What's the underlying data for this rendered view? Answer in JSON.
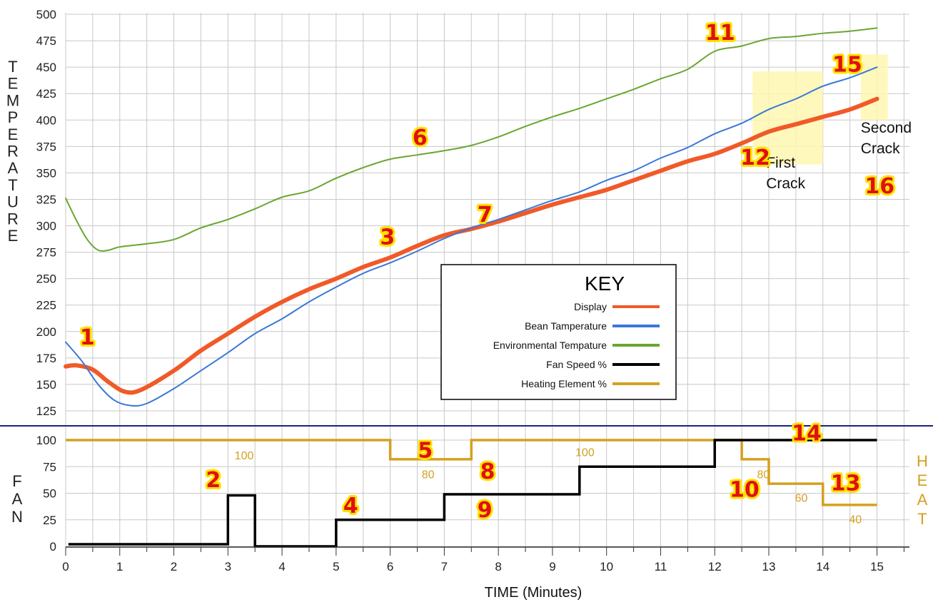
{
  "chart_data": {
    "type": "line",
    "xlabel": "TIME (Minutes)",
    "upper_ylabel": "TEMPERATURE",
    "lower_left_label": "FAN",
    "lower_right_label": "HEAT",
    "x_ticks": [
      0,
      1,
      2,
      3,
      4,
      5,
      6,
      7,
      8,
      9,
      10,
      11,
      12,
      13,
      14,
      15
    ],
    "xlim": [
      0,
      15.6
    ],
    "upper_ylim": [
      112,
      500
    ],
    "upper_y_ticks": [
      125,
      150,
      175,
      200,
      225,
      250,
      275,
      300,
      325,
      350,
      375,
      400,
      425,
      450,
      475,
      500
    ],
    "lower_ylim": [
      0,
      100
    ],
    "lower_y_ticks": [
      0,
      25,
      50,
      75,
      100
    ],
    "legend": {
      "title": "KEY",
      "placement": "center",
      "entries": [
        {
          "name": "Display",
          "color": "#f05a28"
        },
        {
          "name": "Bean Tamperature",
          "color": "#3a78d8"
        },
        {
          "name": "Environmental Tempature",
          "color": "#6aa632"
        },
        {
          "name": "Fan Speed %",
          "color": "#000000"
        },
        {
          "name": "Heating Element %",
          "color": "#d4a020"
        }
      ]
    },
    "series": [
      {
        "key": "display",
        "color": "#f05a28",
        "points": [
          [
            0,
            167
          ],
          [
            0.2,
            168
          ],
          [
            0.5,
            164
          ],
          [
            0.8,
            152
          ],
          [
            1.1,
            143
          ],
          [
            1.4,
            145
          ],
          [
            2,
            163
          ],
          [
            2.5,
            182
          ],
          [
            3,
            198
          ],
          [
            3.5,
            214
          ],
          [
            4,
            228
          ],
          [
            4.5,
            240
          ],
          [
            5,
            250
          ],
          [
            5.5,
            261
          ],
          [
            6,
            270
          ],
          [
            6.5,
            281
          ],
          [
            7,
            291
          ],
          [
            7.5,
            297
          ],
          [
            8,
            304
          ],
          [
            8.5,
            312
          ],
          [
            9,
            320
          ],
          [
            9.5,
            327
          ],
          [
            10,
            334
          ],
          [
            10.5,
            343
          ],
          [
            11,
            352
          ],
          [
            11.5,
            361
          ],
          [
            12,
            368
          ],
          [
            12.5,
            378
          ],
          [
            13,
            389
          ],
          [
            13.5,
            396
          ],
          [
            14,
            403
          ],
          [
            14.5,
            410
          ],
          [
            15,
            420
          ]
        ]
      },
      {
        "key": "bean",
        "color": "#3a78d8",
        "points": [
          [
            0,
            190
          ],
          [
            0.3,
            172
          ],
          [
            0.6,
            150
          ],
          [
            0.9,
            135
          ],
          [
            1.2,
            130
          ],
          [
            1.5,
            132
          ],
          [
            2,
            146
          ],
          [
            2.5,
            163
          ],
          [
            3,
            180
          ],
          [
            3.5,
            198
          ],
          [
            4,
            212
          ],
          [
            4.5,
            228
          ],
          [
            5,
            242
          ],
          [
            5.5,
            255
          ],
          [
            6,
            265
          ],
          [
            6.5,
            276
          ],
          [
            7,
            288
          ],
          [
            7.5,
            298
          ],
          [
            8,
            306
          ],
          [
            8.5,
            315
          ],
          [
            9,
            324
          ],
          [
            9.5,
            332
          ],
          [
            10,
            343
          ],
          [
            10.5,
            352
          ],
          [
            11,
            364
          ],
          [
            11.5,
            374
          ],
          [
            12,
            387
          ],
          [
            12.5,
            397
          ],
          [
            13,
            410
          ],
          [
            13.5,
            420
          ],
          [
            14,
            432
          ],
          [
            14.5,
            440
          ],
          [
            15,
            450
          ]
        ]
      },
      {
        "key": "environment",
        "color": "#6aa632",
        "points": [
          [
            0,
            326
          ],
          [
            0.2,
            305
          ],
          [
            0.4,
            287
          ],
          [
            0.6,
            277
          ],
          [
            0.8,
            277
          ],
          [
            1,
            280
          ],
          [
            1.5,
            283
          ],
          [
            2,
            287
          ],
          [
            2.5,
            298
          ],
          [
            3,
            306
          ],
          [
            3.5,
            316
          ],
          [
            4,
            327
          ],
          [
            4.5,
            333
          ],
          [
            5,
            345
          ],
          [
            5.5,
            355
          ],
          [
            6,
            363
          ],
          [
            6.5,
            367
          ],
          [
            7,
            371
          ],
          [
            7.5,
            376
          ],
          [
            8,
            384
          ],
          [
            8.5,
            394
          ],
          [
            9,
            403
          ],
          [
            9.5,
            411
          ],
          [
            10,
            420
          ],
          [
            10.5,
            429
          ],
          [
            11,
            439
          ],
          [
            11.5,
            448
          ],
          [
            12,
            465
          ],
          [
            12.5,
            470
          ],
          [
            13,
            477
          ],
          [
            13.5,
            479
          ],
          [
            14,
            482
          ],
          [
            14.5,
            484
          ],
          [
            15,
            487
          ]
        ]
      },
      {
        "key": "fan",
        "color": "#000000",
        "step": true,
        "points": [
          [
            0.05,
            2
          ],
          [
            3,
            2
          ],
          [
            3,
            48
          ],
          [
            3.5,
            48
          ],
          [
            3.5,
            0
          ],
          [
            5,
            0
          ],
          [
            5,
            25
          ],
          [
            7,
            25
          ],
          [
            7,
            49
          ],
          [
            9.5,
            49
          ],
          [
            9.5,
            75
          ],
          [
            12,
            75
          ],
          [
            12,
            100
          ],
          [
            15,
            100
          ]
        ]
      },
      {
        "key": "heat",
        "color": "#d4a020",
        "step": true,
        "points": [
          [
            0,
            100
          ],
          [
            6,
            100
          ],
          [
            6,
            82
          ],
          [
            7.5,
            82
          ],
          [
            7.5,
            100
          ],
          [
            12.5,
            100
          ],
          [
            12.5,
            82
          ],
          [
            13,
            82
          ],
          [
            13,
            59
          ],
          [
            14,
            59
          ],
          [
            14,
            39
          ],
          [
            15,
            39
          ]
        ]
      }
    ],
    "heat_labels": [
      {
        "text": "100",
        "x": 3.3,
        "y": 86
      },
      {
        "text": "80",
        "x": 6.7,
        "y": 68
      },
      {
        "text": "100",
        "x": 9.6,
        "y": 89
      },
      {
        "text": "80",
        "x": 12.9,
        "y": 68
      },
      {
        "text": "60",
        "x": 13.6,
        "y": 46
      },
      {
        "text": "40",
        "x": 14.6,
        "y": 26
      }
    ],
    "crack_annotations": [
      {
        "text": [
          "First",
          "Crack"
        ],
        "x_range": [
          12.7,
          14.0
        ],
        "y_range": [
          358,
          446
        ],
        "label_x": 12.95,
        "label_y": 355
      },
      {
        "text": [
          "Second",
          "Crack"
        ],
        "x_range": [
          14.7,
          15.2
        ],
        "y_range": [
          400,
          462
        ],
        "label_x": 14.7,
        "label_y": 388
      }
    ],
    "markers": [
      {
        "text": "1",
        "panel": "upper",
        "x": 0.4,
        "y": 195
      },
      {
        "text": "2",
        "panel": "lower",
        "x": 2.73,
        "y": 63
      },
      {
        "text": "3",
        "panel": "upper",
        "x": 5.95,
        "y": 290
      },
      {
        "text": "4",
        "panel": "lower",
        "x": 5.27,
        "y": 39
      },
      {
        "text": "5",
        "panel": "lower",
        "x": 6.65,
        "y": 91
      },
      {
        "text": "6",
        "panel": "upper",
        "x": 6.55,
        "y": 384
      },
      {
        "text": "7",
        "panel": "upper",
        "x": 7.75,
        "y": 311
      },
      {
        "text": "8",
        "panel": "lower",
        "x": 7.8,
        "y": 71
      },
      {
        "text": "9",
        "panel": "lower",
        "x": 7.75,
        "y": 35
      },
      {
        "text": "10",
        "panel": "lower",
        "x": 12.55,
        "y": 54
      },
      {
        "text": "11",
        "panel": "upper",
        "x": 12.1,
        "y": 483
      },
      {
        "text": "12",
        "panel": "upper",
        "x": 12.75,
        "y": 365
      },
      {
        "text": "13",
        "panel": "lower",
        "x": 14.42,
        "y": 60
      },
      {
        "text": "14",
        "panel": "lower",
        "x": 13.7,
        "y": 107
      },
      {
        "text": "15",
        "panel": "upper",
        "x": 14.45,
        "y": 453
      },
      {
        "text": "16",
        "panel": "upper",
        "x": 15.05,
        "y": 338
      }
    ]
  }
}
